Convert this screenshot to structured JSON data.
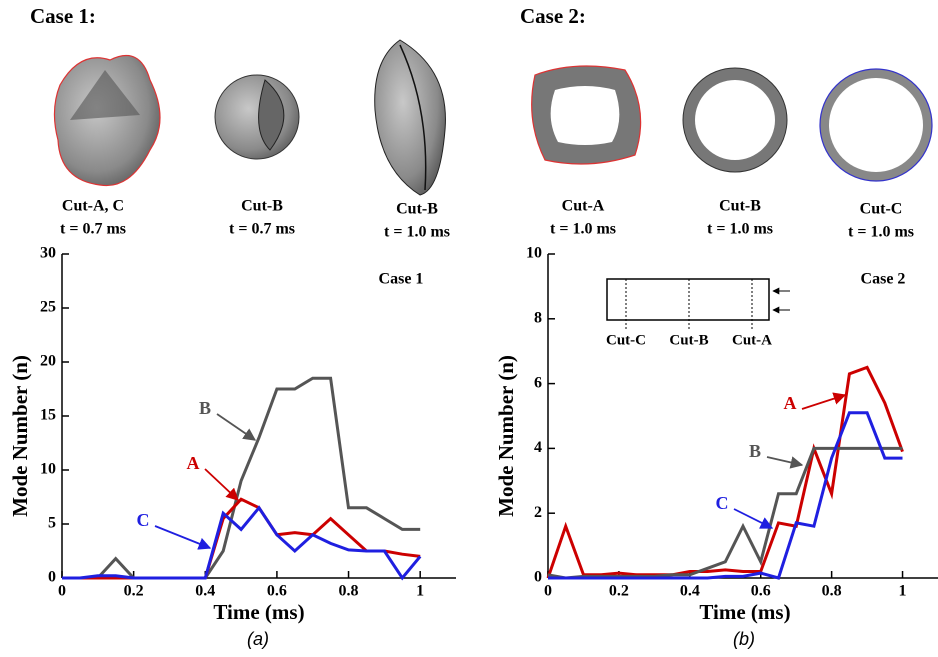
{
  "panels": [
    {
      "heading": "Case 1:",
      "caption": "(a)",
      "shapes": [
        {
          "cut": "Cut-A, C",
          "time": "t = 0.7 ms"
        },
        {
          "cut": "Cut-B",
          "time": "t = 0.7 ms"
        },
        {
          "cut": "Cut-B",
          "time": "t = 1.0 ms"
        }
      ]
    },
    {
      "heading": "Case 2:",
      "caption": "(b)",
      "shapes": [
        {
          "cut": "Cut-A",
          "time": "t = 1.0 ms"
        },
        {
          "cut": "Cut-B",
          "time": "t = 1.0 ms"
        },
        {
          "cut": "Cut-C",
          "time": "t = 1.0 ms"
        }
      ]
    }
  ],
  "chart_data": [
    {
      "type": "line",
      "label": "Case 1",
      "xlabel": "Time (ms)",
      "ylabel": "Mode Number (n)",
      "x": [
        0,
        0.05,
        0.1,
        0.15,
        0.2,
        0.25,
        0.3,
        0.35,
        0.4,
        0.45,
        0.5,
        0.55,
        0.6,
        0.65,
        0.7,
        0.75,
        0.8,
        0.85,
        0.9,
        0.95,
        1.0
      ],
      "xlim": [
        0,
        1.1
      ],
      "xticks": [
        0,
        0.2,
        0.4,
        0.6,
        0.8,
        1
      ],
      "ylim": [
        0,
        30
      ],
      "yticks": [
        0,
        5,
        10,
        15,
        20,
        25,
        30
      ],
      "series": [
        {
          "name": "B",
          "color": "#555555",
          "values": [
            0,
            0,
            0,
            1.8,
            0,
            0,
            0,
            0,
            0,
            2.5,
            9,
            13,
            17.5,
            17.5,
            18.5,
            18.5,
            6.5,
            6.5,
            5.5,
            4.5,
            4.5
          ]
        },
        {
          "name": "A",
          "color": "#cc0000",
          "values": [
            0,
            0,
            0,
            0,
            0,
            0,
            0,
            0,
            0,
            5.5,
            7.3,
            6.5,
            4,
            4.2,
            4,
            5.5,
            4,
            2.5,
            2.5,
            2.2,
            2
          ]
        },
        {
          "name": "C",
          "color": "#1f1fe0",
          "values": [
            0,
            0,
            0.2,
            0.2,
            0,
            0,
            0,
            0,
            0,
            6,
            4.5,
            6.5,
            4,
            2.5,
            4,
            3.2,
            2.6,
            2.5,
            2.5,
            0,
            2
          ]
        }
      ]
    },
    {
      "type": "line",
      "label": "Case 2",
      "xlabel": "Time (ms)",
      "ylabel": "Mode Number (n)",
      "inset_labels": [
        "Cut-C",
        "Cut-B",
        "Cut-A"
      ],
      "x": [
        0,
        0.05,
        0.1,
        0.15,
        0.2,
        0.25,
        0.3,
        0.35,
        0.4,
        0.45,
        0.5,
        0.55,
        0.6,
        0.65,
        0.7,
        0.75,
        0.8,
        0.85,
        0.9,
        0.95,
        1.0
      ],
      "xlim": [
        0,
        1.1
      ],
      "xticks": [
        0,
        0.2,
        0.4,
        0.6,
        0.8,
        1
      ],
      "ylim": [
        0,
        10
      ],
      "yticks": [
        0,
        2,
        4,
        6,
        8,
        10
      ],
      "series": [
        {
          "name": "A",
          "color": "#cc0000",
          "values": [
            0,
            1.6,
            0.1,
            0.1,
            0.15,
            0.1,
            0.1,
            0.1,
            0.2,
            0.2,
            0.25,
            0.2,
            0.2,
            1.7,
            1.6,
            4,
            2.6,
            6.3,
            6.5,
            5.4,
            3.9
          ]
        },
        {
          "name": "B",
          "color": "#555555",
          "values": [
            0.1,
            0,
            0.05,
            0.05,
            0.05,
            0.05,
            0.05,
            0.1,
            0.1,
            0.3,
            0.5,
            1.6,
            0.5,
            2.6,
            2.6,
            4,
            4,
            4,
            4,
            4,
            4
          ]
        },
        {
          "name": "C",
          "color": "#1f1fe0",
          "values": [
            0,
            0,
            0,
            0,
            0,
            0,
            0,
            0,
            0,
            0,
            0.05,
            0.05,
            0.15,
            0,
            1.7,
            1.6,
            3.7,
            5.1,
            5.1,
            3.7,
            3.7
          ]
        }
      ]
    }
  ]
}
